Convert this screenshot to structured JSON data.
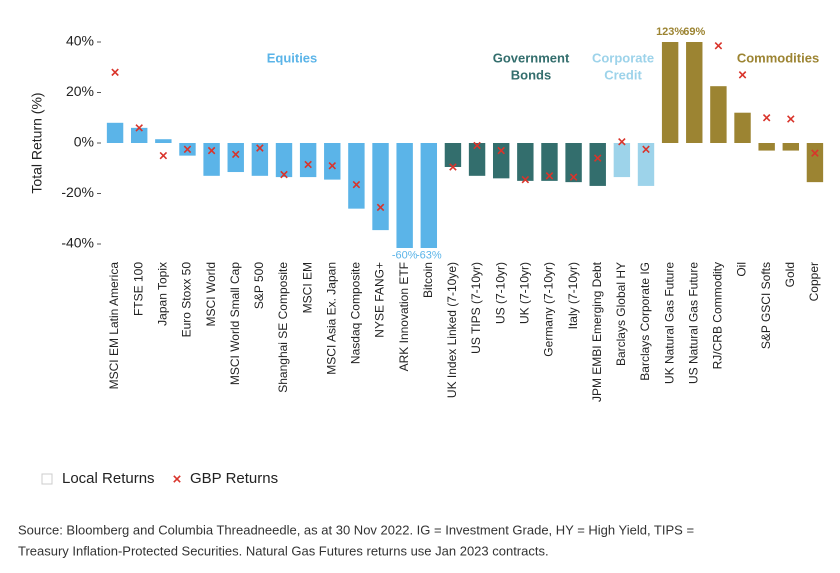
{
  "chart_data": {
    "type": "bar",
    "y_label": "Total Return (%)",
    "categories": [
      "MSCI EM Latin America",
      "FTSE 100",
      "Japan Topix",
      "Euro Stoxx 50",
      "MSCI World",
      "MSCI World Small Cap",
      "S&P 500",
      "Shanghai SE Composite",
      "MSCI EM",
      "MSCI Asia Ex. Japan",
      "Nasdaq Composite",
      "NYSE FANG+",
      "ARK Innovation ETF",
      "Bitcoin",
      "UK Index Linked (7-10ye)",
      "US TIPS (7-10yr)",
      "US (7-10yr)",
      "UK (7-10yr)",
      "Germany (7-10yr)",
      "Italy (7-10yr)",
      "JPM EMBI Emerging Debt",
      "Barclays Global HY",
      "Barclays Corporate IG",
      "UK Natural Gas Future",
      "US Natural Gas Future",
      "RJ/CRB Commodity",
      "Oil",
      "S&P GSCI Softs",
      "Gold",
      "Copper"
    ],
    "series": [
      {
        "name": "Local Returns",
        "color": "#e8e8e8",
        "colors": [
          "#5bb4e8",
          "#5bb4e8",
          "#5bb4e8",
          "#5bb4e8",
          "#5bb4e8",
          "#5bb4e8",
          "#5bb4e8",
          "#5bb4e8",
          "#5bb4e8",
          "#5bb4e8",
          "#5bb4e8",
          "#5bb4e8",
          "#5bb4e8",
          "#5bb4e8",
          "#336e6d",
          "#336e6d",
          "#336e6d",
          "#336e6d",
          "#336e6d",
          "#336e6d",
          "#336e6d",
          "#9dd3ea",
          "#9dd3ea",
          "#9c8432",
          "#9c8432",
          "#9c8432",
          "#9c8432",
          "#9c8432",
          "#9c8432",
          "#9c8432"
        ],
        "values": [
          8,
          6,
          1.5,
          -5,
          -13,
          -11.5,
          -13,
          -13.5,
          -13.5,
          -14.5,
          -26,
          -34.5,
          -60,
          -63,
          -9.5,
          -13,
          -14,
          -15,
          -15,
          -15.5,
          -17,
          -13.5,
          -17,
          123,
          69,
          22.5,
          12,
          -3,
          -3,
          -15.5
        ],
        "value_labels": [
          null,
          null,
          null,
          null,
          null,
          null,
          null,
          null,
          null,
          null,
          null,
          null,
          "-60%",
          "-63%",
          null,
          null,
          null,
          null,
          null,
          null,
          null,
          null,
          null,
          "123%",
          "69%",
          null,
          null,
          null,
          null,
          null
        ]
      },
      {
        "name": "GBP Returns",
        "color": "#d9342b",
        "marker": "x",
        "values": [
          28,
          6,
          -5,
          -2.5,
          -3,
          -4.5,
          -2,
          -12.5,
          -8.5,
          -9,
          -16.5,
          -25.5,
          null,
          null,
          -9.5,
          -1,
          -3,
          -14.5,
          -13,
          -13.5,
          -6,
          0.5,
          -2.5,
          null,
          null,
          38.5,
          27,
          10,
          9.5,
          -4
        ]
      }
    ],
    "groups": [
      {
        "lines": [
          "Equities"
        ],
        "color": "#5bb4e8"
      },
      {
        "lines": [
          "Government",
          "Bonds"
        ],
        "color": "#336e6d"
      },
      {
        "lines": [
          "Corporate",
          "Credit"
        ],
        "color": "#9dd3ea"
      },
      {
        "lines": [
          "Commodities"
        ],
        "color": "#9c8432"
      }
    ],
    "ylim": [
      -41,
      40
    ],
    "yticks": [
      {
        "value": 40,
        "label": "40%"
      },
      {
        "value": 20,
        "label": "20%"
      },
      {
        "value": 0,
        "label": "0%"
      },
      {
        "value": -20,
        "label": "-20%"
      },
      {
        "value": -40,
        "label": "-40%"
      }
    ],
    "grid": false,
    "legend": "bottom-left",
    "source": [
      "Source: Bloomberg and Columbia Threadneedle, as at 30 Nov 2022. IG = Investment Grade, HY = High Yield, TIPS =",
      "Treasury Inflation-Protected Securities. Natural Gas Futures returns use Jan 2023 contracts."
    ]
  }
}
